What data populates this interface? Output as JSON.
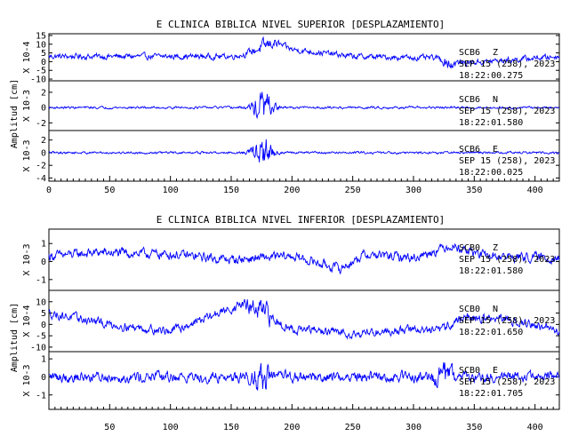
{
  "chart_data": [
    {
      "type": "line",
      "title": "E CLINICA BIBLICA NIVEL SUPERIOR [DESPLAZAMIENTO]",
      "ylabel": "Amplitud [cm]",
      "xlim": [
        0,
        420
      ],
      "xticks": [
        "0",
        "50",
        "100",
        "150",
        "200",
        "250",
        "300",
        "350",
        "400"
      ],
      "series_color": "#0000ff",
      "panels": [
        {
          "name": "SCB6 Z",
          "station": "SCB6",
          "component": "Z",
          "date": "SEP 15 (258), 2023",
          "time": "18:22:00.275",
          "scale": "X 10-4",
          "ylim": [
            -11,
            16
          ],
          "yticks": [
            "15",
            "10",
            "5",
            "0",
            "-5",
            "-10"
          ],
          "baseline_x": [
            0,
            150,
            160,
            175,
            185,
            200,
            250,
            320,
            330,
            360,
            420
          ],
          "baseline_y": [
            3,
            3,
            4,
            8,
            11,
            7,
            3,
            2,
            -1,
            0,
            3
          ],
          "noise_amplitude": 2.2,
          "events": [
            {
              "x": 178,
              "amplitude": 3,
              "width": 10
            },
            {
              "x": 330,
              "amplitude": 4,
              "width": 5
            }
          ]
        },
        {
          "name": "SCB6 N",
          "station": "SCB6",
          "component": "N",
          "date": "SEP 15 (258), 2023",
          "time": "18:22:01.580",
          "scale": "X 10-3",
          "ylim": [
            -3,
            3.5
          ],
          "yticks": [
            "2",
            "0",
            "-2"
          ],
          "baseline_x": [
            0,
            420
          ],
          "baseline_y": [
            0,
            0
          ],
          "noise_amplitude": 0.2,
          "events": [
            {
              "x": 176,
              "amplitude": 2.9,
              "width": 8
            }
          ]
        },
        {
          "name": "SCB6 E",
          "station": "SCB6",
          "component": "E",
          "date": "SEP 15 (258), 2023",
          "time": "18:22:00.025",
          "scale": "X 10-3",
          "ylim": [
            -4.5,
            3.5
          ],
          "yticks": [
            "2",
            "0",
            "-2",
            "-4"
          ],
          "baseline_x": [
            0,
            420
          ],
          "baseline_y": [
            0,
            0
          ],
          "noise_amplitude": 0.25,
          "events": [
            {
              "x": 176,
              "amplitude": 3.3,
              "width": 8
            }
          ]
        }
      ]
    },
    {
      "type": "line",
      "title": "E CLINICA BIBLICA NIVEL INFERIOR [DESPLAZAMIENTO]",
      "ylabel": "Amplitud [cm]",
      "xlim": [
        0,
        420
      ],
      "xticks": [
        "50",
        "100",
        "150",
        "200",
        "250",
        "300",
        "350",
        "400"
      ],
      "series_color": "#0000ff",
      "panels": [
        {
          "name": "SCB0 Z",
          "station": "SCB0",
          "component": "Z",
          "date": "SEP 15 (258), 2023",
          "time": "18:22:01.580",
          "scale": "X 10-3",
          "ylim": [
            -1.6,
            1.8
          ],
          "yticks": [
            "1",
            "0",
            "-1"
          ],
          "baseline_x": [
            0,
            40,
            100,
            150,
            200,
            240,
            260,
            300,
            330,
            360,
            420
          ],
          "baseline_y": [
            0.3,
            0.5,
            0.4,
            0.1,
            0.3,
            -0.4,
            0.4,
            0.2,
            0.9,
            0.3,
            0.2
          ],
          "noise_amplitude": 0.35,
          "events": []
        },
        {
          "name": "SCB0 N",
          "station": "SCB0",
          "component": "N",
          "date": "SEP 15 (258), 2023",
          "time": "18:22:01.650",
          "scale": "X 10-4",
          "ylim": [
            -12,
            15
          ],
          "yticks": [
            "10",
            "5",
            "0",
            "-5",
            "-10"
          ],
          "baseline_x": [
            0,
            50,
            100,
            140,
            160,
            200,
            250,
            300,
            320,
            340,
            380,
            420
          ],
          "baseline_y": [
            5,
            0,
            -3,
            5,
            9,
            -2,
            -4,
            -2,
            -3,
            3,
            2,
            -3
          ],
          "noise_amplitude": 2.6,
          "events": [
            {
              "x": 175,
              "amplitude": 5,
              "width": 10
            }
          ]
        },
        {
          "name": "SCB0 E",
          "station": "SCB0",
          "component": "E",
          "date": "SEP 15 (258), 2023",
          "time": "18:22:01.705",
          "scale": "X 10-3",
          "ylim": [
            -1.8,
            1.4
          ],
          "yticks": [
            "1",
            "0",
            "-1"
          ],
          "baseline_x": [
            0,
            420
          ],
          "baseline_y": [
            0,
            0
          ],
          "noise_amplitude": 0.4,
          "events": [
            {
              "x": 175,
              "amplitude": 0.9,
              "width": 6
            },
            {
              "x": 325,
              "amplitude": 0.6,
              "width": 8
            }
          ]
        }
      ]
    }
  ]
}
